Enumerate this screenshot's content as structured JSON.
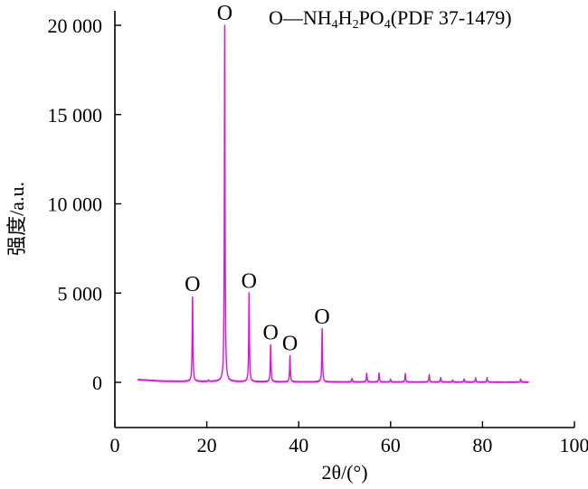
{
  "chart_data": {
    "type": "line",
    "title": "",
    "xlabel": "2θ/(°)",
    "ylabel": "强度/a.u.",
    "xlim": [
      0,
      100
    ],
    "ylim": [
      -2500,
      20500
    ],
    "xticks": [
      0,
      20,
      40,
      60,
      80,
      100
    ],
    "xtick_labels": [
      "0",
      "20",
      "40",
      "60",
      "80",
      "100"
    ],
    "yticks": [
      0,
      5000,
      10000,
      15000,
      20000
    ],
    "ytick_labels": [
      "0",
      "5 000",
      "10 000",
      "15 000",
      "20 000"
    ],
    "grid": false,
    "line_color": "#e010e0",
    "legend": {
      "marker": "O",
      "separator": "—",
      "label_parts": [
        "NH",
        "4",
        "H",
        "2",
        "PO",
        "4",
        "(PDF 37-1479)"
      ],
      "placement": "top-right"
    },
    "peak_marker_symbol": "O",
    "marked_peaks": [
      {
        "x": 16.9,
        "y": 4800
      },
      {
        "x": 23.9,
        "y": 20000
      },
      {
        "x": 29.2,
        "y": 5000
      },
      {
        "x": 33.9,
        "y": 2100
      },
      {
        "x": 38.1,
        "y": 1500
      },
      {
        "x": 45.1,
        "y": 3000
      }
    ],
    "minor_peaks": [
      {
        "x": 20.4,
        "y": 120
      },
      {
        "x": 51.6,
        "y": 230
      },
      {
        "x": 54.8,
        "y": 520
      },
      {
        "x": 57.5,
        "y": 520
      },
      {
        "x": 60.0,
        "y": 170
      },
      {
        "x": 63.2,
        "y": 480
      },
      {
        "x": 68.4,
        "y": 440
      },
      {
        "x": 70.9,
        "y": 280
      },
      {
        "x": 73.5,
        "y": 130
      },
      {
        "x": 76.0,
        "y": 200
      },
      {
        "x": 78.5,
        "y": 250
      },
      {
        "x": 81.0,
        "y": 250
      },
      {
        "x": 88.3,
        "y": 180
      }
    ],
    "baseline": [
      {
        "x": 5,
        "y": 150
      },
      {
        "x": 10,
        "y": 70
      },
      {
        "x": 15,
        "y": 50
      },
      {
        "x": 30,
        "y": 30
      },
      {
        "x": 50,
        "y": 20
      },
      {
        "x": 70,
        "y": 15
      },
      {
        "x": 90,
        "y": 10
      }
    ],
    "x_range": [
      5,
      90
    ]
  }
}
